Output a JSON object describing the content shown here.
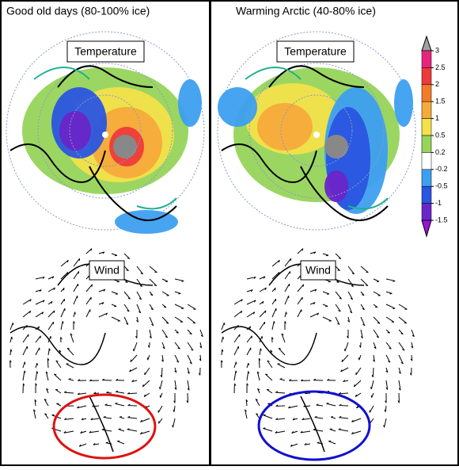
{
  "panels": [
    {
      "title": "Good old days (80-100% ice)",
      "temperature_label": "Temperature",
      "wind_label": "Wind"
    },
    {
      "title": "Warming Arctic (40-80% ice)",
      "temperature_label": "Temperature",
      "wind_label": "Wind"
    }
  ],
  "colorbar": {
    "ticks": [
      3,
      2.5,
      2,
      1.5,
      1,
      0.5,
      0.2,
      -0.2,
      -0.5,
      -1,
      -1.5
    ],
    "colors": [
      "#e8257d",
      "#ee3a3a",
      "#f47a28",
      "#f6aa3a",
      "#f2e14a",
      "#96d45a",
      "#ffffff",
      "#3d9ff0",
      "#2a55e0",
      "#6a25c8"
    ],
    "over_color": "#a0a0a0",
    "under_color": "#9a10d8"
  }
}
